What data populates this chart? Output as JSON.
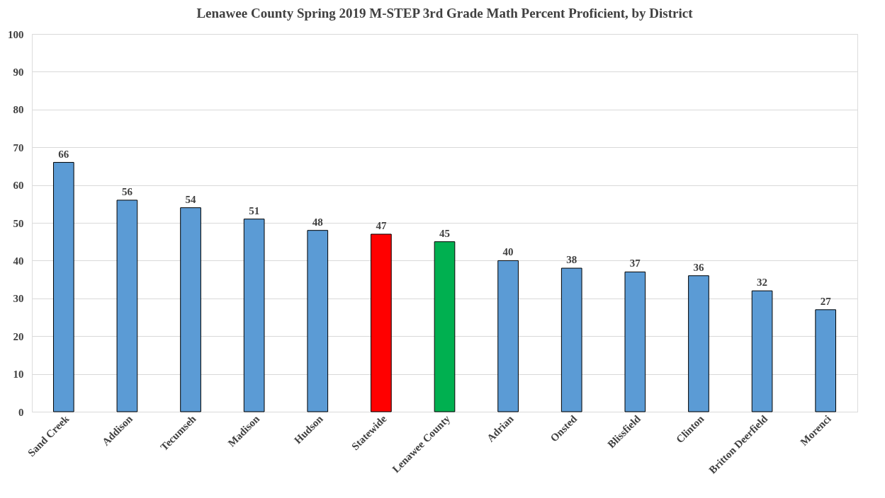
{
  "chart_data": {
    "type": "bar",
    "title": "Lenawee County Spring 2019 M-STEP 3rd Grade Math Percent Proficient, by District",
    "categories": [
      "Sand Creek",
      "Addison",
      "Tecumseh",
      "Madison",
      "Hudson",
      "Statewide",
      "Lenawee County",
      "Adrian",
      "Onsted",
      "Blissfield",
      "Clinton",
      "Britton Deerfield",
      "Morenci"
    ],
    "values": [
      66,
      56,
      54,
      51,
      48,
      47,
      45,
      40,
      38,
      37,
      36,
      32,
      27
    ],
    "colors": [
      "#5b9bd5",
      "#5b9bd5",
      "#5b9bd5",
      "#5b9bd5",
      "#5b9bd5",
      "#ff0000",
      "#00b050",
      "#5b9bd5",
      "#5b9bd5",
      "#5b9bd5",
      "#5b9bd5",
      "#5b9bd5",
      "#5b9bd5"
    ],
    "ylim": [
      0,
      100
    ],
    "yticks": [
      0,
      10,
      20,
      30,
      40,
      50,
      60,
      70,
      80,
      90,
      100
    ],
    "grid": "y",
    "data_labels": true
  }
}
